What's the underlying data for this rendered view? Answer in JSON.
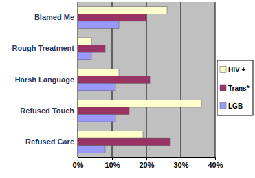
{
  "chart_data": {
    "type": "bar",
    "orientation": "horizontal",
    "categories": [
      "Blamed Me",
      "Rough Treatment",
      "Harsh Language",
      "Refused Touch",
      "Refused Care"
    ],
    "series": [
      {
        "name": "HIV +",
        "color": "#ffffcc",
        "values": [
          26,
          4,
          12,
          36,
          19
        ]
      },
      {
        "name": "Trans*",
        "color": "#993366",
        "values": [
          20,
          8,
          21,
          15,
          27
        ]
      },
      {
        "name": "LGB",
        "color": "#9999ff",
        "values": [
          12,
          4,
          11,
          11,
          8
        ]
      }
    ],
    "xlim": [
      0,
      40
    ],
    "xticks": [
      {
        "value": 0,
        "label": "0%"
      },
      {
        "value": 10,
        "label": "10%"
      },
      {
        "value": 20,
        "label": "20%"
      },
      {
        "value": 30,
        "label": "30%"
      },
      {
        "value": 40,
        "label": "40%"
      }
    ],
    "grid": true,
    "legend": "right"
  }
}
